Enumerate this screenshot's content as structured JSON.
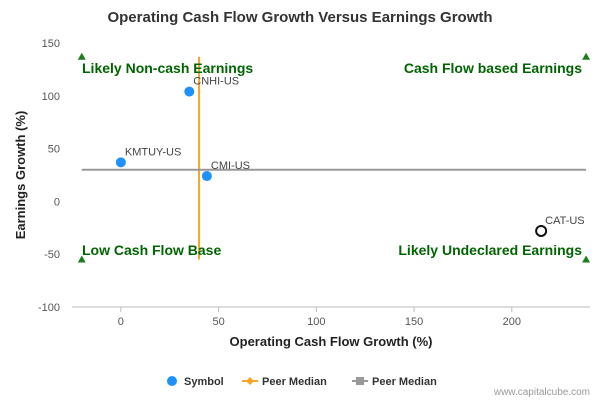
{
  "chart_data": {
    "type": "scatter",
    "title": "Operating Cash Flow Growth Versus Earnings Growth",
    "xlabel": "Operating Cash Flow Growth (%)",
    "ylabel": "Earnings Growth (%)",
    "xlim": [
      -25,
      240
    ],
    "ylim": [
      -100,
      150
    ],
    "xticks": [
      0,
      50,
      100,
      150,
      200
    ],
    "yticks": [
      -100,
      -50,
      0,
      50,
      100,
      150
    ],
    "grid": false,
    "peer_median_x": 40,
    "peer_median_y": 30,
    "points": [
      {
        "label": "CNHI-US",
        "x": 35,
        "y": 104,
        "style": "filled"
      },
      {
        "label": "KMTUY-US",
        "x": 0,
        "y": 37,
        "style": "filled"
      },
      {
        "label": "CMI-US",
        "x": 44,
        "y": 24,
        "style": "filled"
      },
      {
        "label": "CAT-US",
        "x": 215,
        "y": -28,
        "style": "hollow"
      }
    ],
    "quadrant_labels": {
      "top_left": "Likely Non-cash Earnings",
      "top_right": "Cash Flow based Earnings",
      "bottom_left": "Low Cash Flow Base",
      "bottom_right": "Likely Undeclared Earnings"
    },
    "legend": {
      "placement": "bottom",
      "items": [
        {
          "label": "Symbol",
          "kind": "circle",
          "color": "#1e90ff"
        },
        {
          "label": "Peer Median",
          "kind": "line-diamond",
          "color": "#f5a623"
        },
        {
          "label": "Peer Median",
          "kind": "line-square",
          "color": "#999999"
        }
      ]
    },
    "credit": "www.capitalcube.com"
  },
  "colors": {
    "point": "#1e90ff",
    "point_hollow": "#111111",
    "median_x": "#f5a623",
    "median_y": "#999999",
    "quad_label": "#006400",
    "triangle": "#1a7f1a",
    "axis": "#bbbbbb"
  }
}
